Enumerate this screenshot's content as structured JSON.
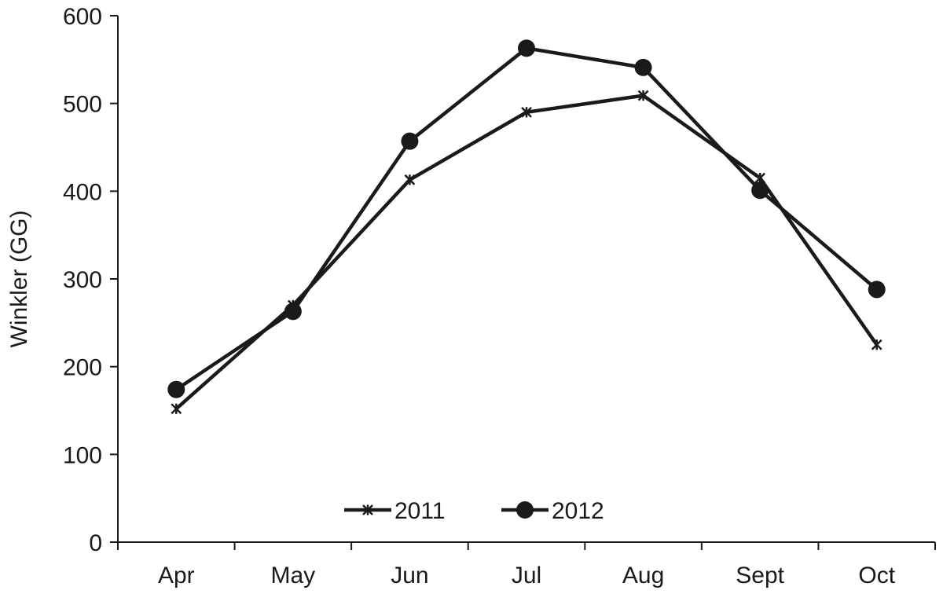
{
  "chart_data": {
    "type": "line",
    "title": "",
    "xlabel": "",
    "ylabel": "Winkler (GG)",
    "categories": [
      "Apr",
      "May",
      "Jun",
      "Jul",
      "Aug",
      "Sept",
      "Oct"
    ],
    "ylim": [
      0,
      600
    ],
    "yticks": [
      "0",
      "100",
      "200",
      "300",
      "400",
      "500",
      "600"
    ],
    "grid": false,
    "legend_position": "bottom-center",
    "series": [
      {
        "name": "2011",
        "marker": "asterisk",
        "color": "#1a1a1a",
        "values": [
          152,
          270,
          413,
          490,
          509,
          415,
          225
        ]
      },
      {
        "name": "2012",
        "marker": "circle",
        "color": "#1a1a1a",
        "values": [
          174,
          263,
          457,
          563,
          541,
          401,
          288
        ]
      }
    ]
  }
}
